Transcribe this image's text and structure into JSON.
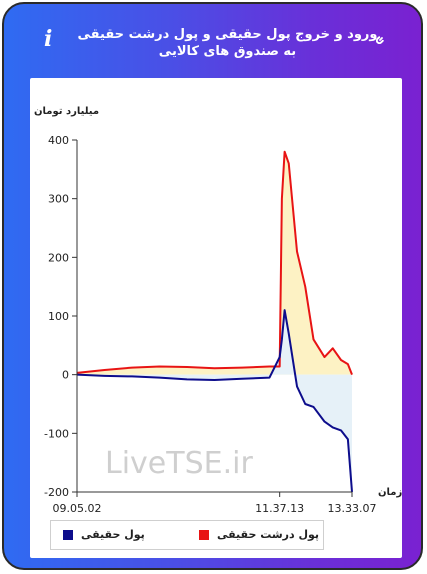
{
  "header": {
    "title": "ورود و خروج پول حقیقی و پول درشت حقیقی به صندوق های کالایی",
    "info_icon": "info-icon",
    "link_icon": "link-icon"
  },
  "chart_data": {
    "type": "line",
    "ylabel": "میلیارد تومان",
    "xlabel": "زمان",
    "ylim": [
      -200,
      400
    ],
    "yticks": [
      "400",
      "300",
      "200",
      "100",
      "0",
      "-100",
      "-200"
    ],
    "xticks": [
      "09.05.02",
      "11.37.13",
      "13.33.07"
    ],
    "watermark": "LiveTSE.ir",
    "x": [
      "09.05.02",
      "09.20.00",
      "09.40.00",
      "10.00.00",
      "10.20.00",
      "10.40.00",
      "11.00.00",
      "11.20.00",
      "11.37.13",
      "11.41.00",
      "11.45.00",
      "11.52.00",
      "12.00.00",
      "12.10.00",
      "12.25.00",
      "12.40.00",
      "13.00.00",
      "13.15.00",
      "13.25.00",
      "13.33.07"
    ],
    "series": [
      {
        "name": "پول درشت حقیقی",
        "color": "#e81414",
        "fill": "#fdf2c4",
        "values": [
          3,
          8,
          12,
          14,
          13,
          11,
          12,
          14,
          14,
          300,
          380,
          360,
          210,
          150,
          60,
          30,
          45,
          25,
          18,
          0
        ]
      },
      {
        "name": "پول حقیقی",
        "color": "#0d0d8c",
        "fill": "#e6f1f8",
        "values": [
          0,
          -2,
          -3,
          -5,
          -8,
          -9,
          -7,
          -5,
          30,
          60,
          110,
          70,
          -20,
          -50,
          -55,
          -80,
          -90,
          -95,
          -110,
          -200
        ]
      }
    ],
    "legend": "bottom",
    "grid": false
  }
}
